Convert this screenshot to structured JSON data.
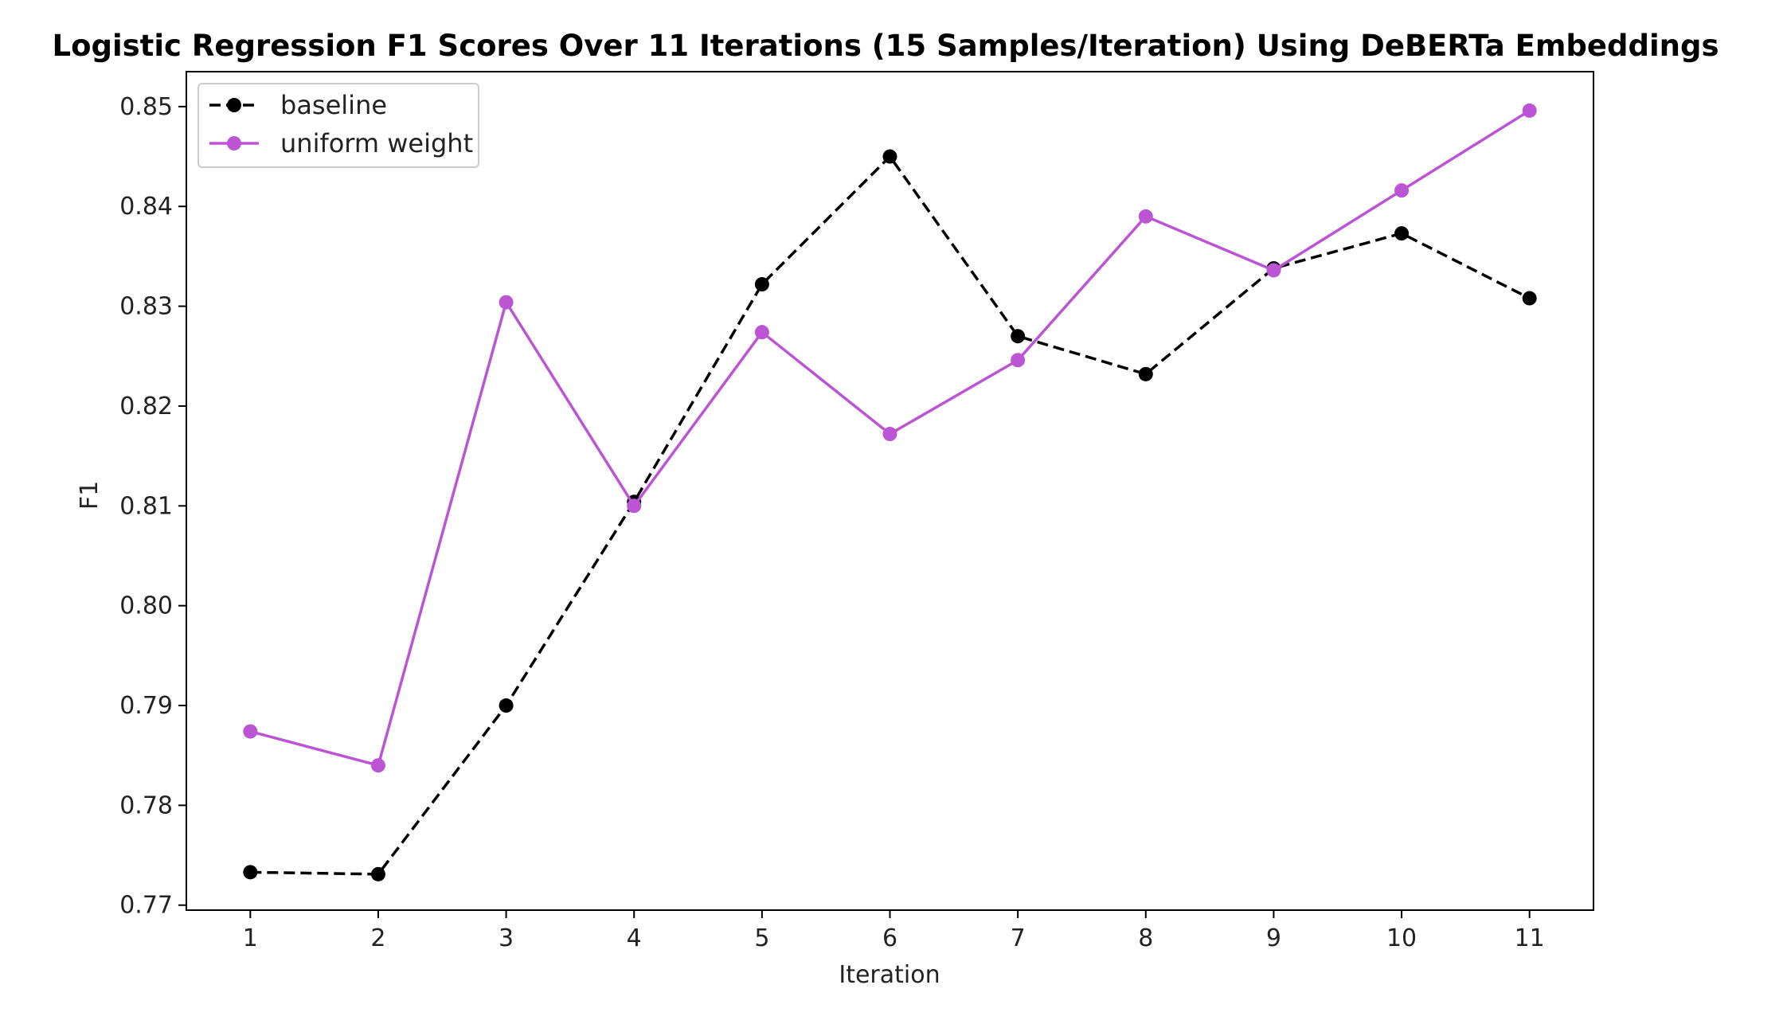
{
  "chart_data": {
    "type": "line",
    "title": "Logistic Regression F1 Scores Over 11 Iterations (15 Samples/Iteration) Using DeBERTa Embeddings",
    "xlabel": "Iteration",
    "ylabel": "F1",
    "x": [
      1,
      2,
      3,
      4,
      5,
      6,
      7,
      8,
      9,
      10,
      11
    ],
    "xlim": [
      0.5,
      11.5
    ],
    "ylim": [
      0.7695,
      0.8535
    ],
    "x_ticks": [
      "1",
      "2",
      "3",
      "4",
      "5",
      "6",
      "7",
      "8",
      "9",
      "10",
      "11"
    ],
    "y_ticks": [
      "0.77",
      "0.78",
      "0.79",
      "0.80",
      "0.81",
      "0.82",
      "0.83",
      "0.84",
      "0.85"
    ],
    "grid": false,
    "legend_position": "upper left",
    "series": [
      {
        "name": "baseline",
        "color": "#000000",
        "line_style": "dashed",
        "marker": "circle",
        "values": [
          0.7733,
          0.7731,
          0.79,
          0.8104,
          0.8322,
          0.845,
          0.827,
          0.8232,
          0.8338,
          0.8373,
          0.8308
        ]
      },
      {
        "name": "uniform weight",
        "color": "#BB55D3",
        "line_style": "solid",
        "marker": "circle",
        "values": [
          0.7874,
          0.784,
          0.8304,
          0.81,
          0.8274,
          0.8172,
          0.8246,
          0.839,
          0.8336,
          0.8416,
          0.8496
        ]
      }
    ]
  }
}
